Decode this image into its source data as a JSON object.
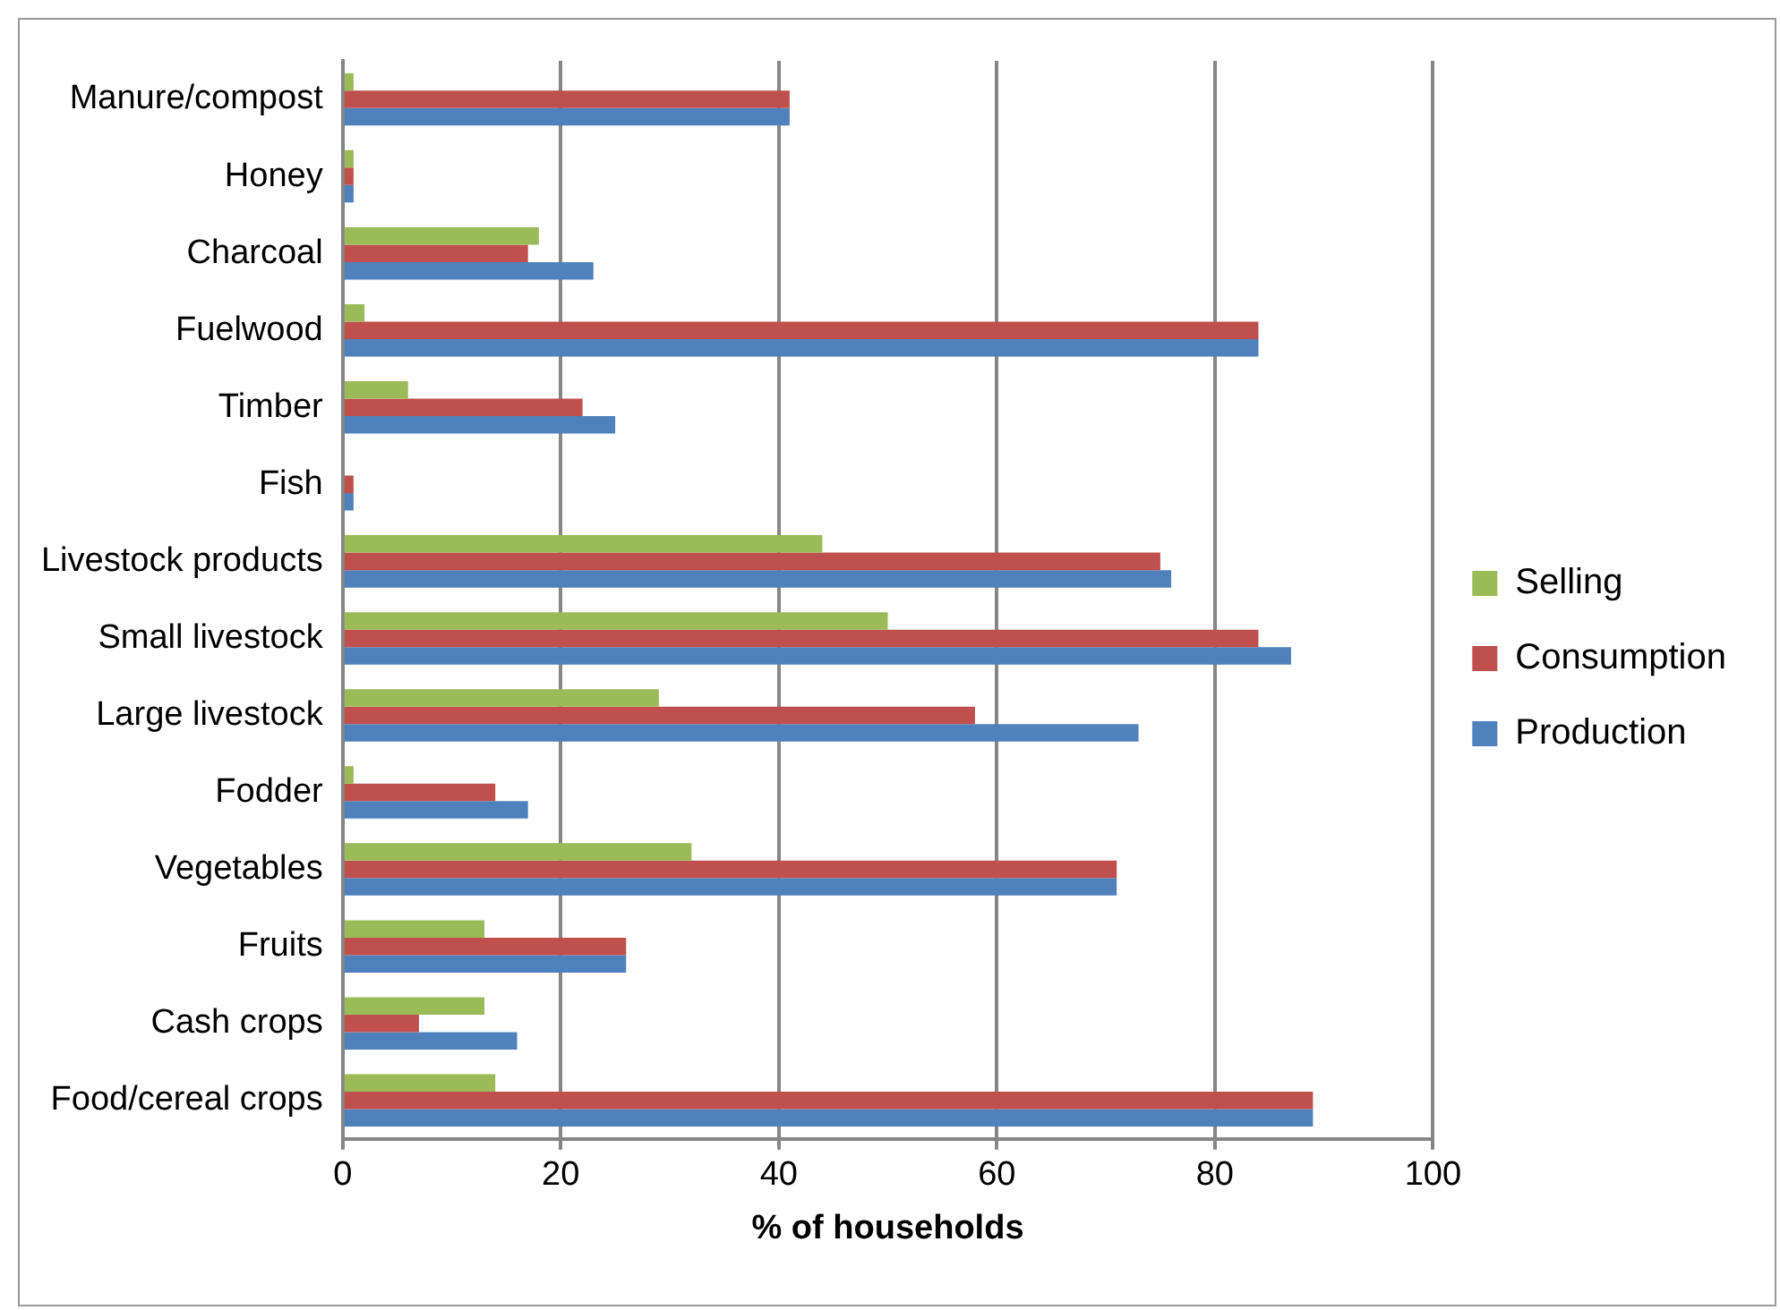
{
  "chart_data": {
    "type": "bar",
    "orientation": "horizontal",
    "xlabel": "% of households",
    "categories": [
      "Manure/compost",
      "Honey",
      "Charcoal",
      "Fuelwood",
      "Timber",
      "Fish",
      "Livestock products",
      "Small livestock",
      "Large livestock",
      "Fodder",
      "Vegetables",
      "Fruits",
      "Cash crops",
      "Food/cereal crops"
    ],
    "series": [
      {
        "name": "Selling",
        "color": "#9bbb59",
        "values": [
          1,
          1,
          18,
          2,
          6,
          0,
          44,
          50,
          29,
          1,
          32,
          13,
          13,
          14
        ]
      },
      {
        "name": "Consumption",
        "color": "#c0504d",
        "values": [
          41,
          1,
          17,
          84,
          22,
          1,
          75,
          84,
          58,
          14,
          71,
          26,
          7,
          89
        ]
      },
      {
        "name": "Production",
        "color": "#4f81bd",
        "values": [
          41,
          1,
          23,
          84,
          25,
          1,
          76,
          87,
          73,
          17,
          71,
          26,
          16,
          89
        ]
      }
    ],
    "xlim": [
      0,
      100
    ],
    "xticks": [
      0,
      20,
      40,
      60,
      80,
      100
    ],
    "grid": "x",
    "legend": "right"
  }
}
